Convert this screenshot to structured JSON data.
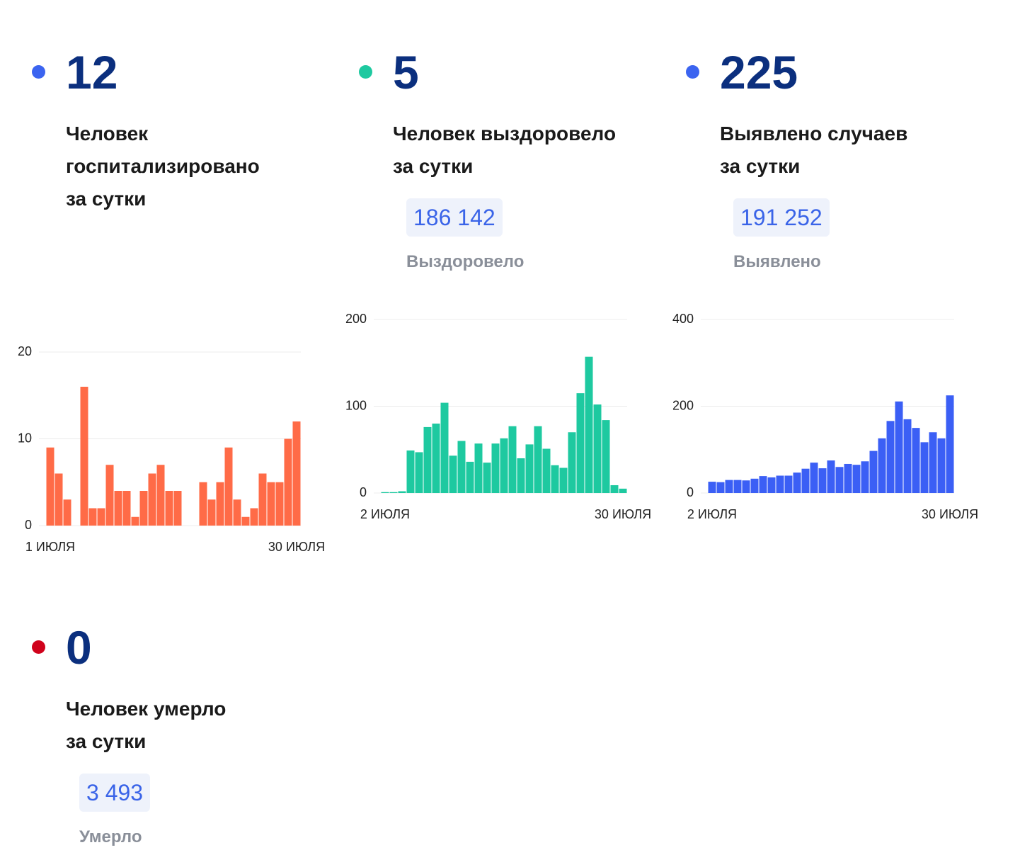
{
  "stats": [
    {
      "value": 12,
      "label_lines": [
        "Человек",
        "госпитализировано",
        "за сутки"
      ]
    },
    {
      "value": 5,
      "label_lines": [
        "Человек выздоровело",
        "за сутки"
      ],
      "total": "186 142",
      "total_label": "Выздоровело"
    },
    {
      "value": 225,
      "label_lines": [
        "Выявлено случаев",
        "за сутки"
      ],
      "total": "191 252",
      "total_label": "Выявлено"
    },
    {
      "value": 0,
      "label_lines": [
        "Человек умерло",
        "за сутки"
      ],
      "total": "3 493",
      "total_label": "Умерло"
    }
  ],
  "dot_colors": [
    "#3b64f0",
    "#1ec9a0",
    "#3b64f0",
    "#d0021b"
  ],
  "chart_data": [
    {
      "type": "bar",
      "color": "#ff6b47",
      "grid": true,
      "categories": [
        "1 ИЮЛЯ",
        null,
        null,
        null,
        null,
        null,
        null,
        null,
        null,
        null,
        null,
        null,
        null,
        null,
        null,
        null,
        null,
        null,
        null,
        null,
        null,
        null,
        null,
        null,
        null,
        null,
        null,
        null,
        null,
        "30 ИЮЛЯ"
      ],
      "values": [
        9,
        6,
        3,
        0,
        16,
        2,
        2,
        7,
        4,
        4,
        1,
        4,
        6,
        7,
        4,
        4,
        0,
        0,
        5,
        3,
        5,
        9,
        3,
        1,
        2,
        6,
        5,
        5,
        10,
        12
      ],
      "ylim": [
        0,
        20
      ],
      "yticks": [
        0,
        10,
        20
      ]
    },
    {
      "type": "bar",
      "color": "#1ec9a0",
      "grid": true,
      "categories": [
        "2 ИЮЛЯ",
        null,
        null,
        null,
        null,
        null,
        null,
        null,
        null,
        null,
        null,
        null,
        null,
        null,
        null,
        null,
        null,
        null,
        null,
        null,
        null,
        null,
        null,
        null,
        null,
        null,
        null,
        null,
        "30 ИЮЛЯ"
      ],
      "values": [
        1,
        1,
        2,
        49,
        47,
        76,
        80,
        104,
        43,
        60,
        36,
        57,
        35,
        57,
        63,
        77,
        40,
        56,
        77,
        51,
        32,
        29,
        70,
        115,
        157,
        102,
        84,
        9,
        5
      ],
      "ylim": [
        0,
        200
      ],
      "yticks": [
        0,
        100,
        200
      ]
    },
    {
      "type": "bar",
      "color": "#3b5ff5",
      "grid": true,
      "categories": [
        "2 ИЮЛЯ",
        null,
        null,
        null,
        null,
        null,
        null,
        null,
        null,
        null,
        null,
        null,
        null,
        null,
        null,
        null,
        null,
        null,
        null,
        null,
        null,
        null,
        null,
        null,
        null,
        null,
        null,
        null,
        "30 ИЮЛЯ"
      ],
      "values": [
        26,
        25,
        30,
        30,
        29,
        33,
        39,
        36,
        40,
        40,
        47,
        56,
        70,
        57,
        75,
        60,
        67,
        65,
        73,
        97,
        126,
        166,
        211,
        170,
        150,
        117,
        140,
        126,
        225
      ],
      "ylim": [
        0,
        400
      ],
      "yticks": [
        0,
        200,
        400
      ]
    }
  ]
}
